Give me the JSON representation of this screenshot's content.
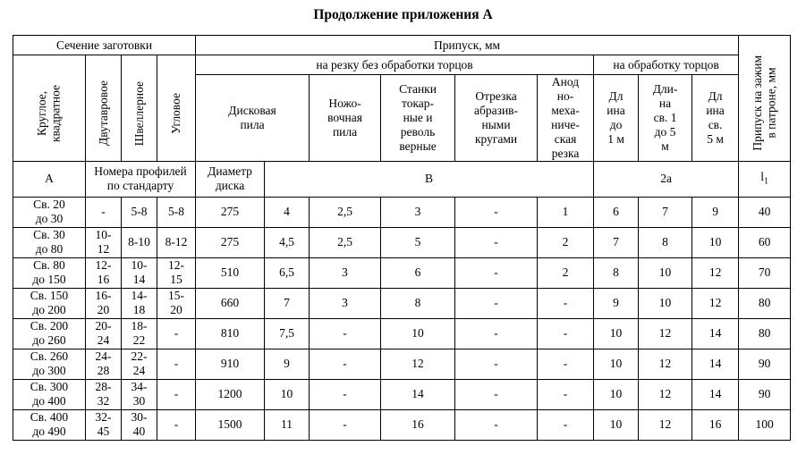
{
  "page": {
    "title": "Продолжение приложения А"
  },
  "table": {
    "header": {
      "workpiece_section": "Сечение заготовки",
      "allowance_mm": "Припуск, мм",
      "clamp_allowance": "Припуск на зажим\nв патроне, мм",
      "cutting_without_face_machining": "на резку без обработки торцов",
      "face_machining": "на обработку торцов",
      "profiles": {
        "round_square": "Круглое,\nквадратное",
        "ibeam": "Двутавровое",
        "channel": "Швеллерное",
        "angle": "Угловое"
      },
      "methods": {
        "disc_saw": "Дисковая\nпила",
        "hacksaw": "Ножо-\nвочная\nпила",
        "lathe_turret": "Станки\nтокар-\nные и\nреволь\nверные",
        "abrasive_wheels": "Отрезка\nабразив-\nными\nкругами",
        "anodic_mechanical": "Анод\nно-\nмеха-\nниче-\nская\nрезка"
      },
      "lengths": {
        "up_to_1m": "Дл\nина\nдо\n1 м",
        "over_1_to_5m": "Дли-\nна\nсв. 1\nдо 5\nм",
        "over_5m": "Дл\nина\nсв.\n5 м"
      },
      "symbols": {
        "a": "А",
        "profile_numbers": "Номера профилей\nпо стандарту",
        "disc_diameter": "Диаметр\nдиска",
        "b": "В",
        "two_a": "2а",
        "l1_base": "l",
        "l1_sub": "1"
      }
    },
    "rows": [
      [
        "Св. 20\nдо 30",
        "-",
        "5-8",
        "5-8",
        "275",
        "4",
        "2,5",
        "3",
        "-",
        "1",
        "6",
        "7",
        "9",
        "40"
      ],
      [
        "Св. 30\nдо 80",
        "10-\n12",
        "8-10",
        "8-12",
        "275",
        "4,5",
        "2,5",
        "5",
        "-",
        "2",
        "7",
        "8",
        "10",
        "60"
      ],
      [
        "Св. 80\nдо 150",
        "12-\n16",
        "10-\n14",
        "12-\n15",
        "510",
        "6,5",
        "3",
        "6",
        "-",
        "2",
        "8",
        "10",
        "12",
        "70"
      ],
      [
        "Св. 150\nдо 200",
        "16-\n20",
        "14-\n18",
        "15-\n20",
        "660",
        "7",
        "3",
        "8",
        "-",
        "-",
        "9",
        "10",
        "12",
        "80"
      ],
      [
        "Св. 200\nдо 260",
        "20-\n24",
        "18-\n22",
        "-",
        "810",
        "7,5",
        "-",
        "10",
        "-",
        "-",
        "10",
        "12",
        "14",
        "80"
      ],
      [
        "Св. 260\nдо 300",
        "24-\n28",
        "22-\n24",
        "-",
        "910",
        "9",
        "-",
        "12",
        "-",
        "-",
        "10",
        "12",
        "14",
        "90"
      ],
      [
        "Св. 300\nдо 400",
        "28-\n32",
        "34-\n30",
        "-",
        "1200",
        "10",
        "-",
        "14",
        "-",
        "-",
        "10",
        "12",
        "14",
        "90"
      ],
      [
        "Св. 400\nдо 490",
        "32-\n45",
        "30-\n40",
        "-",
        "1500",
        "11",
        "-",
        "16",
        "-",
        "-",
        "10",
        "12",
        "16",
        "100"
      ]
    ]
  }
}
